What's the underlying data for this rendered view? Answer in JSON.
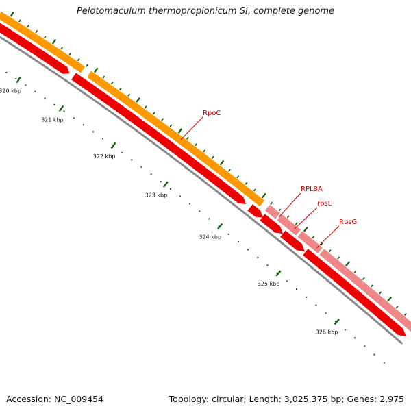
{
  "title": "Pelotomaculum thermopropionicum SI, complete genome",
  "footer": {
    "accession": "Accession: NC_009454",
    "summary": "Topology: circular; Length: 3,025,375 bp; Genes: 2,975"
  },
  "colors": {
    "orange_track": "#ff9900",
    "pink_track": "#ee8888",
    "red_features": "#ee0000",
    "backbone": "#888888",
    "tick_marks": "#116611",
    "gene_label_color": "#cc0000"
  },
  "ruler": {
    "labels": [
      "320 kbp",
      "321 kbp",
      "322 kbp",
      "323 kbp",
      "324 kbp",
      "325 kbp",
      "326 kbp"
    ]
  },
  "gene_labels": [
    {
      "id": "rpoc",
      "text": "RpoC"
    },
    {
      "id": "rpl8a",
      "text": "RPL8A"
    },
    {
      "id": "rpsl",
      "text": "rpsL"
    },
    {
      "id": "rpsg",
      "text": "RpsG"
    }
  ]
}
